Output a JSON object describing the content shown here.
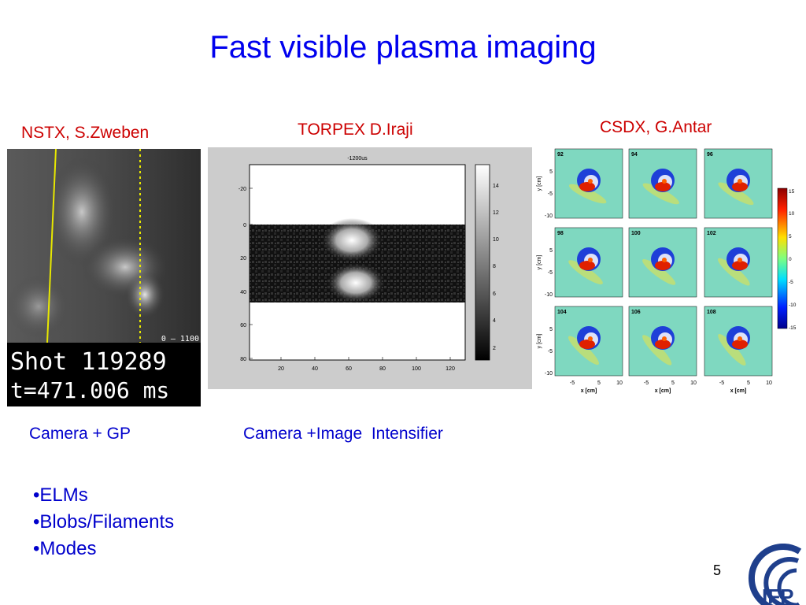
{
  "slide": {
    "title": "Fast visible plasma imaging",
    "page_number": "5"
  },
  "nstx": {
    "label": "NSTX, S.Zweben",
    "caption": "Camera + GP",
    "range_text": "0 – 1100",
    "shot_text": "Shot 119289",
    "time_text": "t=471.006 ms"
  },
  "torpex": {
    "label": "TORPEX D.Iraji",
    "caption": "Camera +Image  Intensifier",
    "plot_title": "-1200us",
    "y_ticks": [
      "-20",
      "0",
      "20",
      "40",
      "60",
      "80"
    ],
    "x_ticks": [
      "20",
      "40",
      "60",
      "80",
      "100",
      "120"
    ],
    "colorbar_ticks": [
      "14",
      "12",
      "10",
      "8",
      "6",
      "4",
      "2"
    ]
  },
  "csdx": {
    "label": "CSDX, G.Antar",
    "frames": [
      "92",
      "94",
      "96",
      "98",
      "100",
      "102",
      "104",
      "106",
      "108"
    ],
    "y_axis_label": "y [cm]",
    "x_axis_label": "x [cm]",
    "y_ticks": [
      "5",
      "-5",
      "-10"
    ],
    "x_ticks": [
      "-5",
      "5",
      "10"
    ],
    "colorbar_ticks": [
      "15",
      "10",
      "5",
      "0",
      "-5",
      "-10",
      "-15"
    ]
  },
  "bullets": [
    "•ELMs",
    "•Blobs/Filaments",
    "•Modes"
  ],
  "logo": {
    "text": "IFP"
  }
}
